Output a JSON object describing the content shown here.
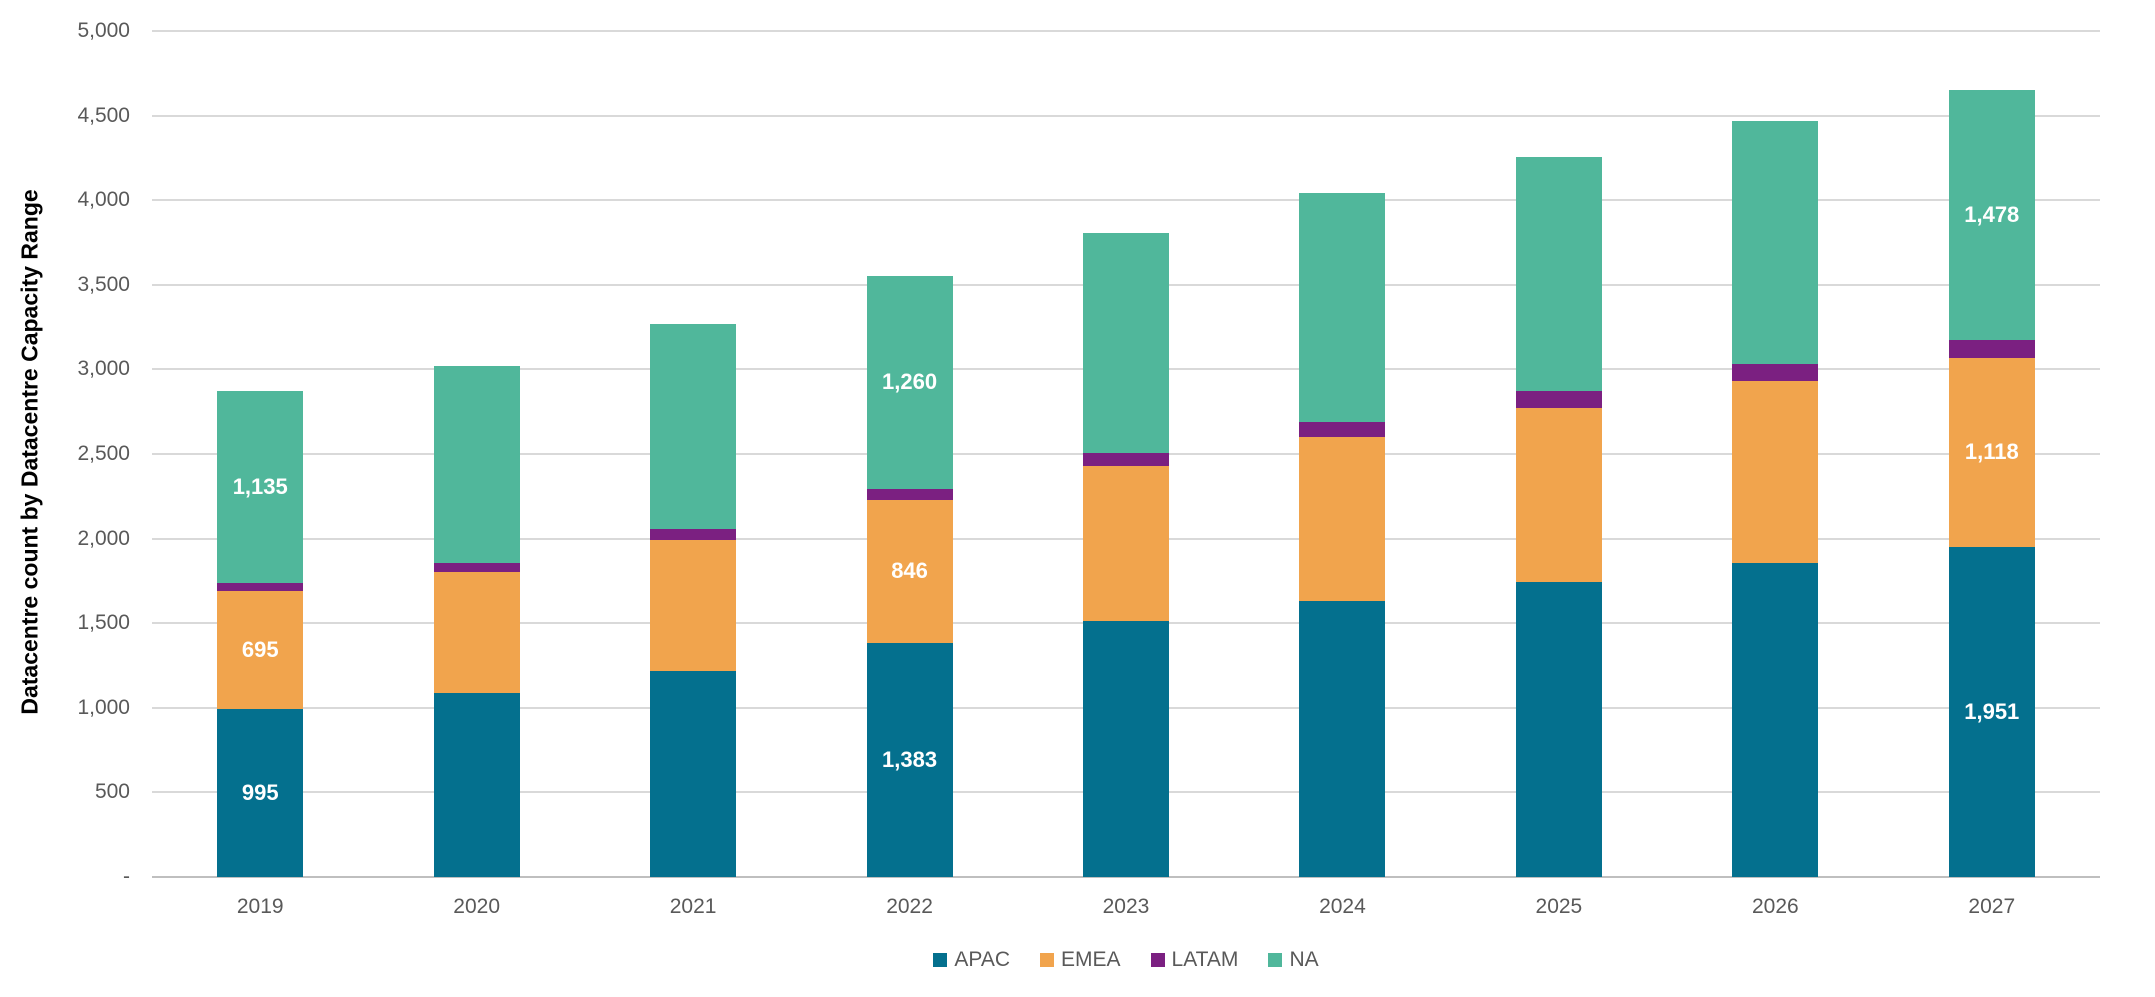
{
  "chart_data": {
    "type": "bar",
    "stacked": true,
    "title": "",
    "xlabel": "",
    "ylabel": "Datacentre count by Datacentre Capacity Range",
    "ylim": [
      0,
      5000
    ],
    "ytick_step": 500,
    "ytick_labels": [
      "-",
      "500",
      "1,000",
      "1,500",
      "2,000",
      "2,500",
      "3,000",
      "3,500",
      "4,000",
      "4,500",
      "5,000"
    ],
    "grid": true,
    "legend_position": "bottom",
    "categories": [
      "2019",
      "2020",
      "2021",
      "2022",
      "2023",
      "2024",
      "2025",
      "2026",
      "2027"
    ],
    "series": [
      {
        "name": "APAC",
        "color": "#04708E",
        "values": [
          995,
          1090,
          1218,
          1383,
          1511,
          1632,
          1744,
          1858,
          1951
        ],
        "data_labels": {
          "0": "995",
          "3": "1,383",
          "8": "1,951"
        }
      },
      {
        "name": "EMEA",
        "color": "#F1A44D",
        "values": [
          695,
          713,
          776,
          846,
          917,
          971,
          1029,
          1076,
          1118
        ],
        "data_labels": {
          "0": "695",
          "3": "846",
          "8": "1,118"
        }
      },
      {
        "name": "LATAM",
        "color": "#7B2081",
        "values": [
          49,
          54,
          65,
          66,
          79,
          89,
          98,
          100,
          106
        ],
        "data_labels": {}
      },
      {
        "name": "NA",
        "color": "#50B79B",
        "values": [
          1135,
          1163,
          1209,
          1260,
          1300,
          1350,
          1387,
          1432,
          1478
        ],
        "data_labels": {
          "0": "1,135",
          "3": "1,260",
          "8": "1,478"
        }
      }
    ]
  }
}
